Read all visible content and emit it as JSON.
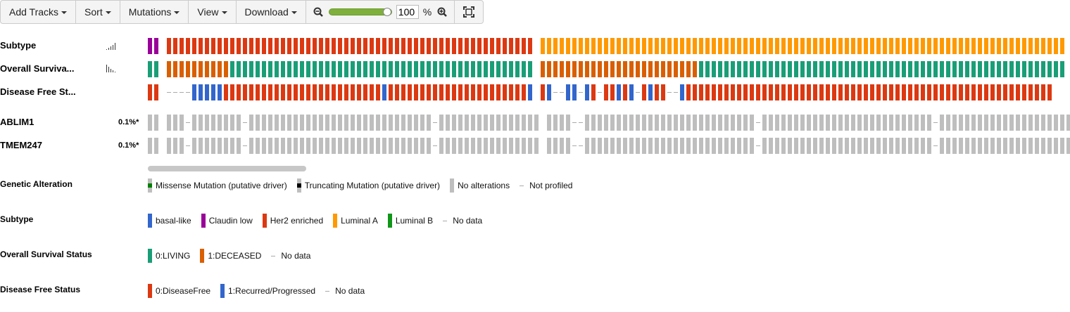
{
  "toolbar": {
    "add_tracks": "Add Tracks",
    "sort": "Sort",
    "mutations": "Mutations",
    "view": "View",
    "download": "Download",
    "zoom_value": "100",
    "zoom_unit": "%",
    "zoom_level": 1.0
  },
  "tracks": {
    "subtype": "Subtype",
    "overall_survival": "Overall Surviva...",
    "disease_free": "Disease Free St...",
    "gene1": {
      "name": "ABLIM1",
      "pct": "0.1%*"
    },
    "gene2": {
      "name": "TMEM247",
      "pct": "0.1%*"
    }
  },
  "colors": {
    "basal_like": "#3366cc",
    "claudin_low": "#990099",
    "her2_enriched": "#dc3912",
    "luminal_a": "#ff9900",
    "luminal_b": "#109618",
    "living": "#1a9e77",
    "deceased": "#d95f02",
    "disease_free": "#dc3912",
    "recurred": "#3366cc",
    "no_alteration": "#bebebe",
    "missense": "#008000",
    "truncating": "#000000"
  },
  "oncoprint": {
    "subtype_runs": [
      [
        "claudin_low",
        2
      ],
      [
        "gap",
        1
      ],
      [
        "her2_enriched",
        58
      ],
      [
        "gap",
        1
      ],
      [
        "luminal_a",
        83
      ]
    ],
    "os_runs": [
      [
        "living",
        2
      ],
      [
        "gap",
        1
      ],
      [
        "deceased",
        10
      ],
      [
        "living",
        48
      ],
      [
        "gap",
        1
      ],
      [
        "deceased",
        25
      ],
      [
        "living",
        58
      ]
    ],
    "dfs_runs": [
      [
        "disease_free",
        2
      ],
      [
        "gap",
        1
      ],
      [
        "nodata",
        4
      ],
      [
        "recurred",
        5
      ],
      [
        "disease_free",
        25
      ],
      [
        "recurred",
        1
      ],
      [
        "disease_free",
        22
      ],
      [
        "recurred",
        1
      ],
      [
        "gap",
        1
      ],
      [
        "disease_free",
        1
      ],
      [
        "recurred",
        1
      ],
      [
        "nodata",
        2
      ],
      [
        "recurred",
        2
      ],
      [
        "nodata",
        1
      ],
      [
        "recurred",
        1
      ],
      [
        "disease_free",
        1
      ],
      [
        "nodata",
        1
      ],
      [
        "disease_free",
        2
      ],
      [
        "recurred",
        1
      ],
      [
        "disease_free",
        1
      ],
      [
        "recurred",
        1
      ],
      [
        "nodata",
        1
      ],
      [
        "disease_free",
        1
      ],
      [
        "recurred",
        1
      ],
      [
        "disease_free",
        2
      ],
      [
        "nodata",
        2
      ],
      [
        "recurred",
        1
      ],
      [
        "disease_free",
        58
      ]
    ],
    "gene_runs": [
      [
        "noalt",
        2
      ],
      [
        "gap",
        1
      ],
      [
        "noalt",
        3
      ],
      [
        "nodata",
        1
      ],
      [
        "noalt",
        8
      ],
      [
        "nodata",
        1
      ],
      [
        "noalt",
        29
      ],
      [
        "nodata",
        1
      ],
      [
        "noalt",
        16
      ],
      [
        "gap",
        1
      ],
      [
        "noalt",
        4
      ],
      [
        "nodata",
        2
      ],
      [
        "noalt",
        27
      ],
      [
        "nodata",
        1
      ],
      [
        "noalt",
        27
      ],
      [
        "nodata",
        1
      ],
      [
        "noalt",
        21
      ]
    ]
  },
  "legend": {
    "genetic": {
      "title": "Genetic Alteration",
      "items": [
        "Missense Mutation (putative driver)",
        "Truncating Mutation (putative driver)",
        "No alterations",
        "Not profiled"
      ]
    },
    "subtype": {
      "title": "Subtype",
      "items": [
        "basal-like",
        "Claudin low",
        "Her2 enriched",
        "Luminal A",
        "Luminal B",
        "No data"
      ]
    },
    "os": {
      "title": "Overall Survival Status",
      "items": [
        "0:LIVING",
        "1:DECEASED",
        "No data"
      ]
    },
    "dfs": {
      "title": "Disease Free Status",
      "items": [
        "0:DiseaseFree",
        "1:Recurred/Progressed",
        "No data"
      ]
    }
  }
}
